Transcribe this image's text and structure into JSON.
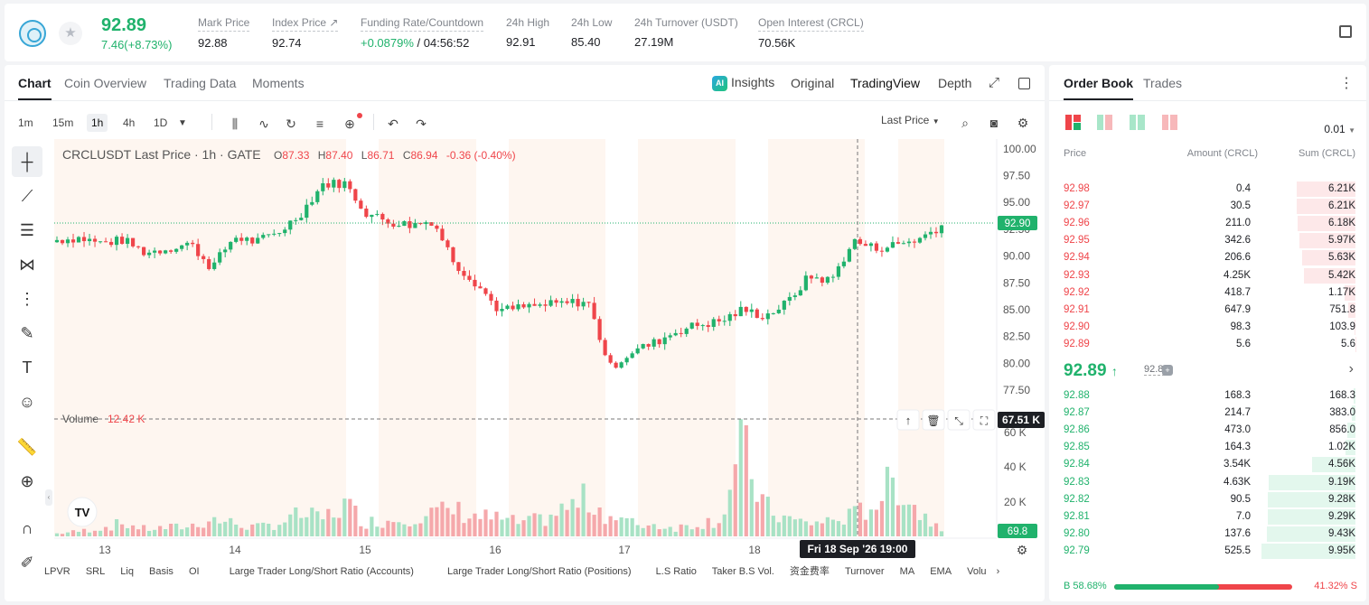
{
  "header": {
    "last_price": "92.89",
    "change": "7.46(+8.73%)",
    "stats": [
      {
        "label": "Mark Price",
        "value": "92.88"
      },
      {
        "label": "Index Price ↗",
        "value": "92.74"
      },
      {
        "label": "Funding Rate/Countdown",
        "value_a": "+0.0879%",
        "value_b": " / 04:56:52"
      },
      {
        "label": "24h High",
        "value": "92.91"
      },
      {
        "label": "24h Low",
        "value": "85.40"
      },
      {
        "label": "24h Turnover (USDT)",
        "value": "27.19M"
      },
      {
        "label": "Open Interest (CRCL)",
        "value": "70.56K"
      }
    ]
  },
  "chart_tabs": [
    "Chart",
    "Coin Overview",
    "Trading Data",
    "Moments"
  ],
  "view_tabs": {
    "insights": "Insights",
    "original": "Original",
    "tradingview": "TradingView",
    "depth": "Depth",
    "ai_badge": "AI"
  },
  "timeframes": [
    "1m",
    "15m",
    "1h",
    "4h",
    "1D"
  ],
  "price_source": "Last Price",
  "legend": {
    "symbol": "CRCLUSDT Last Price · 1h · GATE",
    "o_label": "O",
    "o": "87.33",
    "h_label": "H",
    "h": "87.40",
    "l_label": "L",
    "l": "86.71",
    "c_label": "C",
    "c": "86.94",
    "chg": "-0.36 (-0.40%)",
    "volume_label": "Volume",
    "volume_value": "12.42 K"
  },
  "tv_logo": "TV",
  "crosshair": {
    "time": "Fri 18 Sep '26   19:00",
    "volume": "67.51 K"
  },
  "bottom_indicators": [
    "LPVR",
    "SRL",
    "Liq",
    "Basis",
    "OI",
    "Large Trader Long/Short Ratio (Accounts)",
    "Large Trader Long/Short Ratio (Positions)",
    "L.S Ratio",
    "Taker B.S Vol.",
    "资金费率",
    "Turnover",
    "MA",
    "EMA",
    "Volu"
  ],
  "chart_data": {
    "type": "candlestick",
    "title": "CRCLUSDT Last Price · 1h · GATE",
    "y_ticks": [
      "100.00",
      "97.50",
      "95.00",
      "92.50",
      "90.00",
      "87.50",
      "85.00",
      "82.50",
      "80.00",
      "77.50"
    ],
    "ylim": [
      76.5,
      100.4
    ],
    "x_ticks": [
      "13",
      "14",
      "15",
      "16",
      "17",
      "18"
    ],
    "last_price_label": "92.90",
    "last_volume_label": "69.8",
    "volume_ticks": [
      "60 K",
      "40 K",
      "20 K"
    ],
    "volume_max": 70000,
    "anchors": [
      91.5,
      91.7,
      91.2,
      91.5,
      90.3,
      90.7,
      91.2,
      88.9,
      91.8,
      91.3,
      92.2,
      93.9,
      96.7,
      96.8,
      94.0,
      93.2,
      92.9,
      93.3,
      89.3,
      87.4,
      84.9,
      85.2,
      85.4,
      85.6,
      85.8,
      79.6,
      81.1,
      81.9,
      83.0,
      83.6,
      83.9,
      85.0,
      84.4,
      85.6,
      88.1,
      87.7,
      91.4,
      90.7,
      91.1,
      91.6,
      92.9
    ],
    "volume_anchors": [
      2000,
      3500,
      6000,
      9000,
      5000,
      6000,
      7000,
      12000,
      9000,
      6000,
      9000,
      15000,
      12000,
      22000,
      10000,
      11000,
      14000,
      16000,
      18000,
      14000,
      12000,
      9000,
      12000,
      19000,
      26000,
      14000,
      9000,
      8000,
      6000,
      9000,
      12000,
      60000,
      20000,
      12000,
      9000,
      11000,
      14000,
      24000,
      40000,
      16000,
      7000
    ]
  },
  "orderbook": {
    "tabs": [
      "Order Book",
      "Trades"
    ],
    "precision": "0.01",
    "headers": {
      "price": "Price",
      "amount": "Amount (CRCL)",
      "sum": "Sum (CRCL)"
    },
    "asks": [
      {
        "price": "92.98",
        "amount": "0.4",
        "sum": "6.21K",
        "depth": 0.623
      },
      {
        "price": "92.97",
        "amount": "30.5",
        "sum": "6.21K",
        "depth": 0.623
      },
      {
        "price": "92.96",
        "amount": "211.0",
        "sum": "6.18K",
        "depth": 0.62
      },
      {
        "price": "92.95",
        "amount": "342.6",
        "sum": "5.97K",
        "depth": 0.599
      },
      {
        "price": "92.94",
        "amount": "206.6",
        "sum": "5.63K",
        "depth": 0.565
      },
      {
        "price": "92.93",
        "amount": "4.25K",
        "sum": "5.42K",
        "depth": 0.544
      },
      {
        "price": "92.92",
        "amount": "418.7",
        "sum": "1.17K",
        "depth": 0.117
      },
      {
        "price": "92.91",
        "amount": "647.9",
        "sum": "751.8",
        "depth": 0.075
      },
      {
        "price": "92.90",
        "amount": "98.3",
        "sum": "103.9",
        "depth": 0.01
      },
      {
        "price": "92.89",
        "amount": "5.6",
        "sum": "5.6",
        "depth": 0.001
      }
    ],
    "mid_price": "92.89",
    "mark_price": "92.88",
    "bids": [
      {
        "price": "92.88",
        "amount": "168.3",
        "sum": "168.3",
        "depth": 0.017
      },
      {
        "price": "92.87",
        "amount": "214.7",
        "sum": "383.0",
        "depth": 0.038
      },
      {
        "price": "92.86",
        "amount": "473.0",
        "sum": "856.0",
        "depth": 0.086
      },
      {
        "price": "92.85",
        "amount": "164.3",
        "sum": "1.02K",
        "depth": 0.102
      },
      {
        "price": "92.84",
        "amount": "3.54K",
        "sum": "4.56K",
        "depth": 0.458
      },
      {
        "price": "92.83",
        "amount": "4.63K",
        "sum": "9.19K",
        "depth": 0.922
      },
      {
        "price": "92.82",
        "amount": "90.5",
        "sum": "9.28K",
        "depth": 0.931
      },
      {
        "price": "92.81",
        "amount": "7.0",
        "sum": "9.29K",
        "depth": 0.932
      },
      {
        "price": "92.80",
        "amount": "137.6",
        "sum": "9.43K",
        "depth": 0.946
      },
      {
        "price": "92.79",
        "amount": "525.5",
        "sum": "9.95K",
        "depth": 0.998
      }
    ],
    "buy_ratio": "58.68%",
    "sell_ratio": "41.32%",
    "buy_label": "B",
    "sell_label": "S",
    "buy_fraction": 0.5868
  }
}
